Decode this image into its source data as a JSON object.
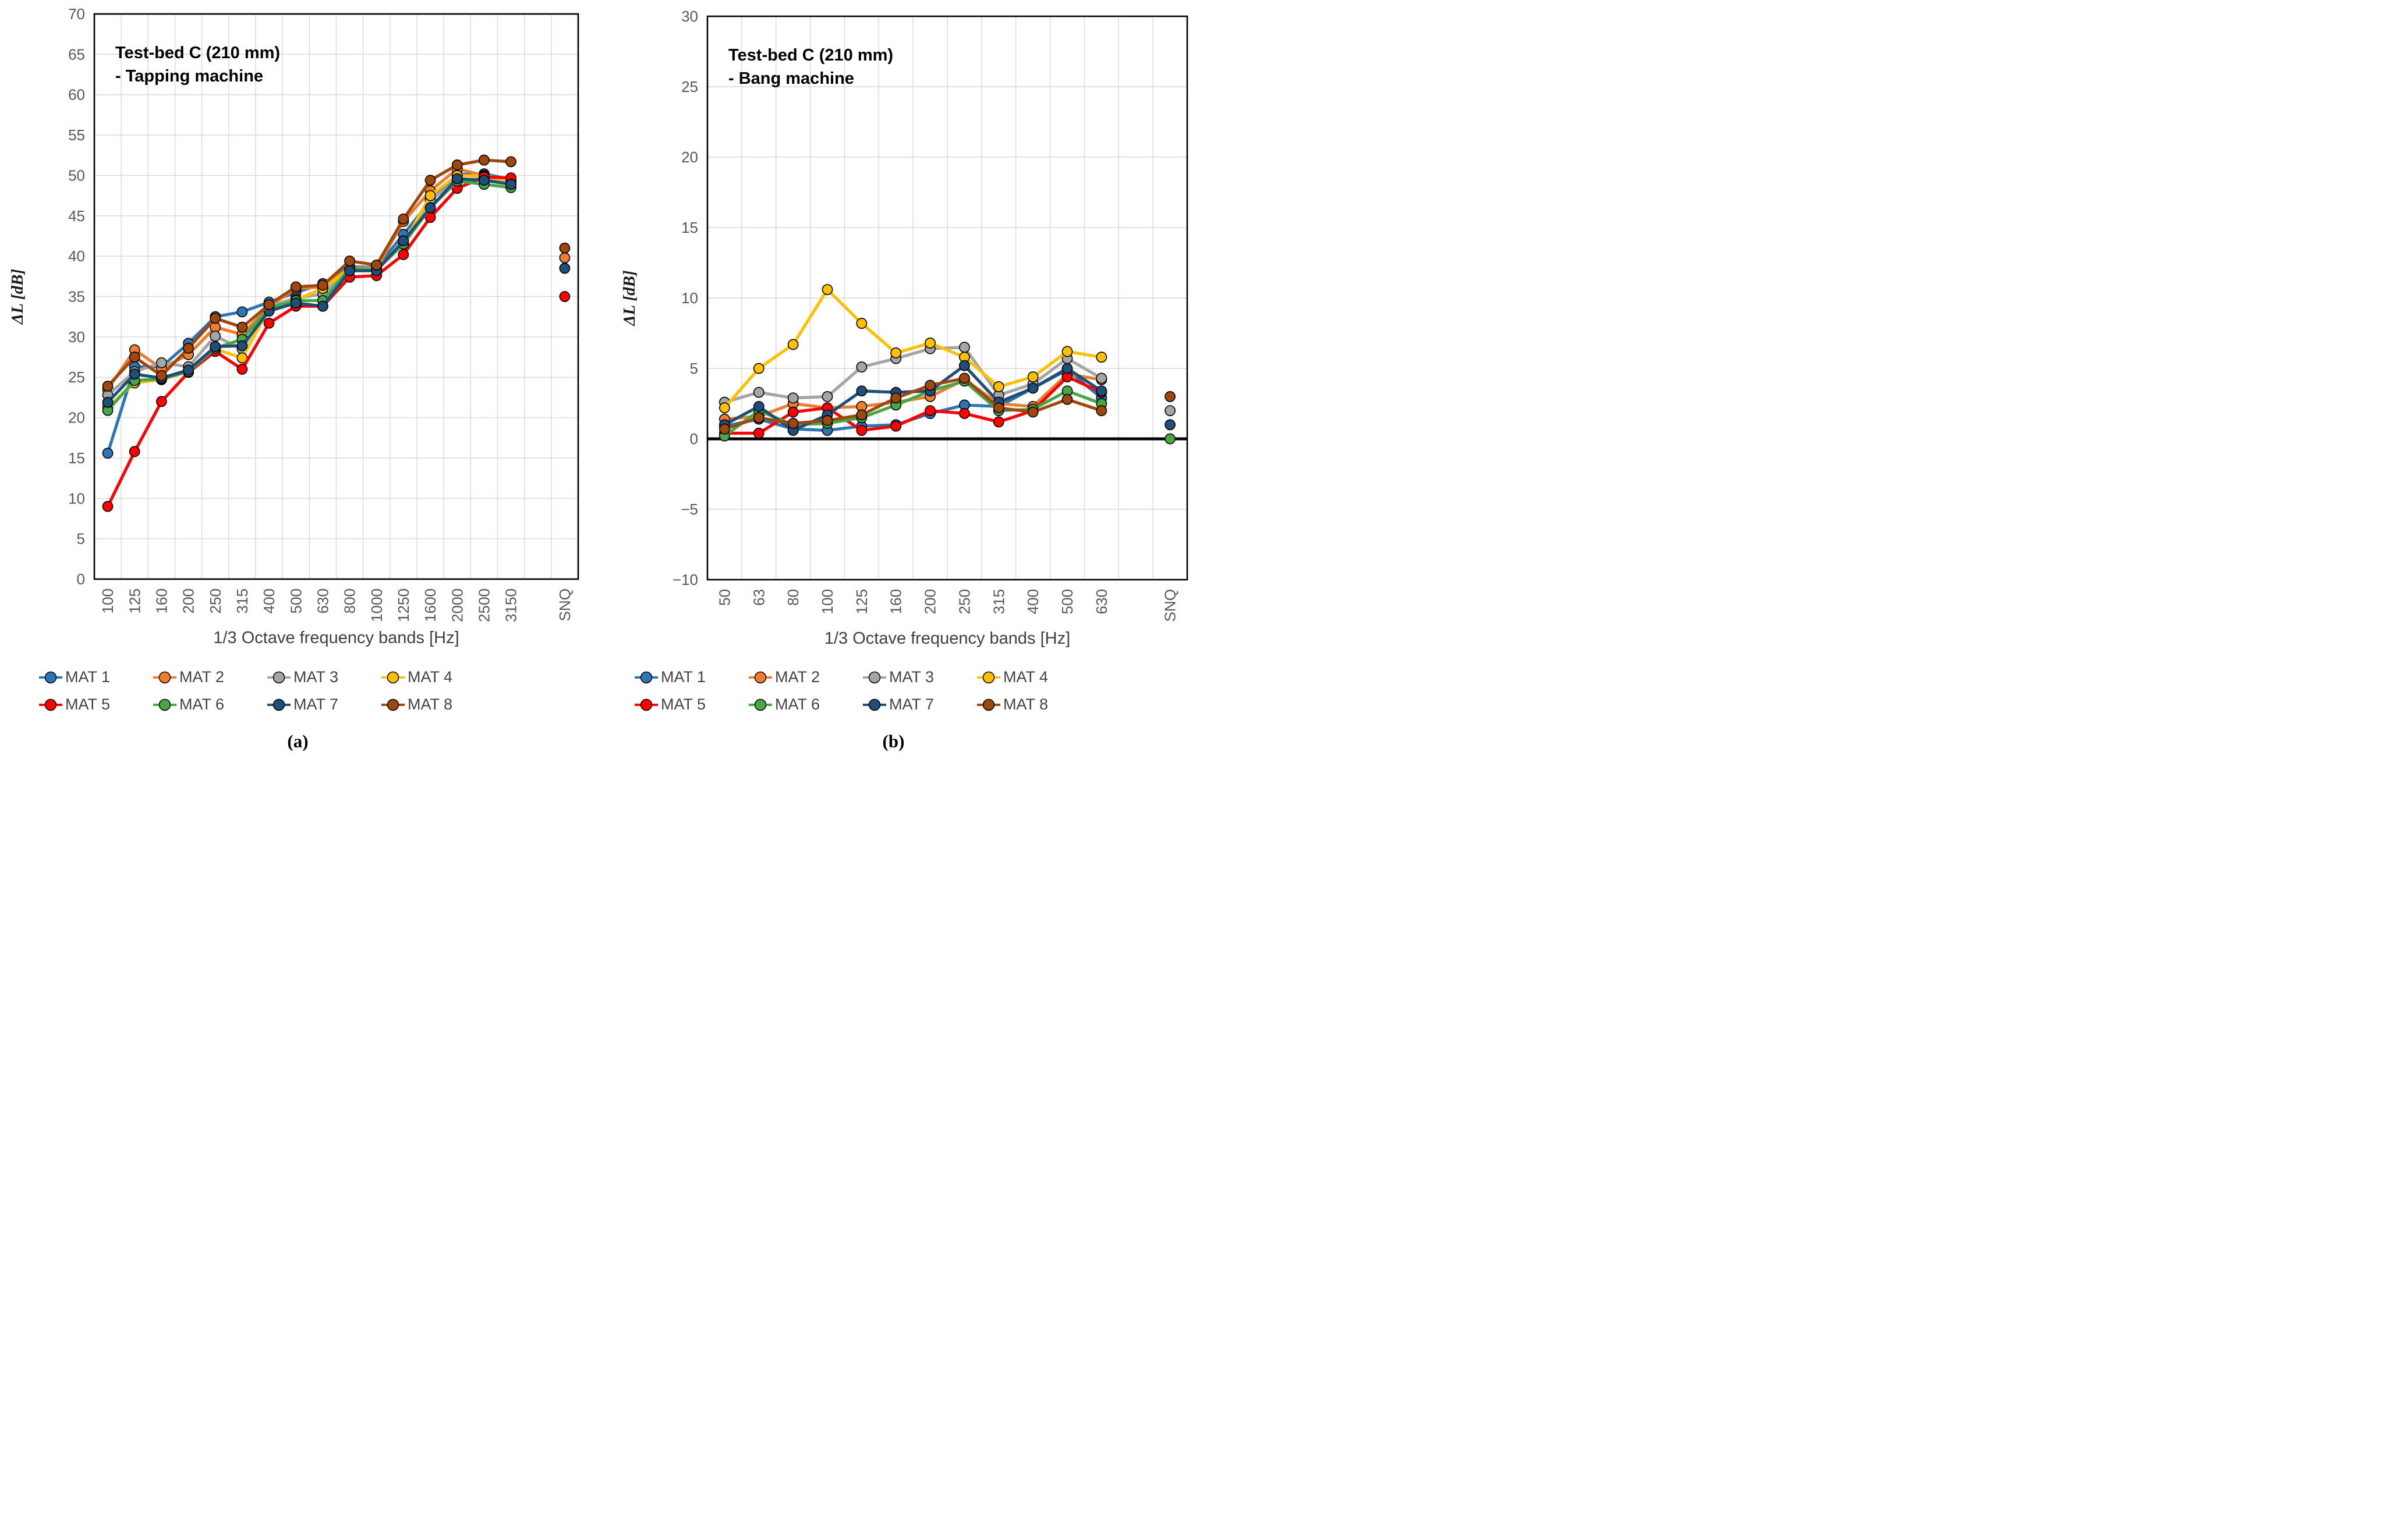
{
  "figure": {
    "caption_a": "(a)",
    "caption_b": "(b)"
  },
  "legend": {
    "items": [
      {
        "label": "MAT 1",
        "color": "#2E75B6"
      },
      {
        "label": "MAT 2",
        "color": "#ED7D31"
      },
      {
        "label": "MAT 3",
        "color": "#A5A5A5"
      },
      {
        "label": "MAT 4",
        "color": "#FFC000"
      },
      {
        "label": "MAT 5",
        "color": "#FF0000"
      },
      {
        "label": "MAT 6",
        "color": "#45A845"
      },
      {
        "label": "MAT 7",
        "color": "#1F4E79"
      },
      {
        "label": "MAT 8",
        "color": "#9E480E"
      }
    ]
  },
  "chart_data": [
    {
      "type": "line",
      "panel": "a",
      "title": "Test-bed C (210 mm)",
      "subtitle": "- Tapping machine",
      "xlabel": "1/3 Octave frequency bands [Hz]",
      "ylabel": "ΔL [dB]",
      "ylim": [
        0,
        70
      ],
      "ytick": 5,
      "ytick_labels": [
        "70",
        "65",
        "60",
        "55",
        "50",
        "45",
        "40",
        "35",
        "30",
        "25",
        "20",
        "15",
        "10",
        "5",
        "0"
      ],
      "grid": true,
      "zero_line": false,
      "legend_position": "bottom",
      "snq_label": "SNQ",
      "categories": [
        "100",
        "125",
        "160",
        "200",
        "250",
        "315",
        "400",
        "500",
        "630",
        "800",
        "1000",
        "1250",
        "1600",
        "2000",
        "2500",
        "3150"
      ],
      "series": [
        {
          "name": "MAT 1",
          "color": "#2E75B6",
          "values": [
            15.6,
            26.3,
            26.3,
            29.2,
            32.5,
            33.1,
            34.3,
            35.5,
            36.6,
            38.7,
            38.6,
            42.7,
            46.8,
            50.1,
            50.2,
            49.5
          ],
          "snq": null
        },
        {
          "name": "MAT 2",
          "color": "#ED7D31",
          "values": [
            23.5,
            28.4,
            26.1,
            27.8,
            31.2,
            30.3,
            33.8,
            36.0,
            36.2,
            38.6,
            38.5,
            44.3,
            48.1,
            50.8,
            50.0,
            49.4
          ],
          "snq": 39.8
        },
        {
          "name": "MAT 3",
          "color": "#A5A5A5",
          "values": [
            22.8,
            25.7,
            26.8,
            26.3,
            30.1,
            28.5,
            33.8,
            34.8,
            35.3,
            38.5,
            38.4,
            41.6,
            47.0,
            49.4,
            49.6,
            49.2
          ],
          "snq": null
        },
        {
          "name": "MAT 4",
          "color": "#FFC000",
          "values": [
            21.3,
            24.3,
            24.7,
            25.7,
            28.5,
            27.4,
            33.5,
            34.6,
            36.0,
            38.4,
            38.3,
            41.5,
            47.5,
            50.0,
            49.9,
            49.3
          ],
          "snq": null
        },
        {
          "name": "MAT 5",
          "color": "#FF0000",
          "values": [
            9.0,
            15.8,
            22.0,
            25.6,
            28.2,
            26.0,
            31.7,
            33.8,
            33.8,
            37.4,
            37.6,
            40.2,
            44.8,
            48.4,
            49.8,
            49.7
          ],
          "snq": 35.0
        },
        {
          "name": "MAT 6",
          "color": "#45A845",
          "values": [
            20.9,
            24.6,
            24.8,
            25.7,
            28.6,
            29.7,
            33.6,
            34.5,
            34.5,
            38.5,
            38.3,
            41.5,
            46.0,
            49.3,
            48.9,
            48.5
          ],
          "snq": null
        },
        {
          "name": "MAT 7",
          "color": "#1F4E79",
          "values": [
            21.9,
            25.4,
            24.9,
            25.9,
            28.8,
            28.9,
            33.2,
            34.2,
            33.8,
            38.2,
            38.2,
            41.9,
            46.0,
            49.6,
            49.4,
            48.9
          ],
          "snq": 38.5
        },
        {
          "name": "MAT 8",
          "color": "#9E480E",
          "values": [
            23.9,
            27.5,
            25.2,
            28.6,
            32.3,
            31.2,
            34.0,
            36.2,
            36.4,
            39.4,
            38.9,
            44.6,
            49.4,
            51.3,
            51.9,
            51.7
          ],
          "snq": 41.0
        }
      ]
    },
    {
      "type": "line",
      "panel": "b",
      "title": "Test-bed C (210 mm)",
      "subtitle": "- Bang machine",
      "xlabel": "1/3 Octave frequency bands [Hz]",
      "ylabel": "ΔL [dB]",
      "ylim": [
        -10,
        30
      ],
      "ytick": 5,
      "ytick_labels": [
        "30",
        "25",
        "20",
        "15",
        "10",
        "5",
        "0",
        "−5",
        "−10"
      ],
      "grid": true,
      "zero_line": true,
      "legend_position": "bottom",
      "snq_label": "SNQ",
      "categories": [
        "50",
        "63",
        "80",
        "100",
        "125",
        "160",
        "200",
        "250",
        "315",
        "400",
        "500",
        "630"
      ],
      "series": [
        {
          "name": "MAT 1",
          "color": "#2E75B6",
          "values": [
            0.9,
            1.4,
            0.7,
            0.6,
            0.9,
            1.0,
            1.8,
            2.4,
            2.3,
            3.6,
            4.9,
            2.9
          ],
          "snq": null
        },
        {
          "name": "MAT 2",
          "color": "#ED7D31",
          "values": [
            1.4,
            1.6,
            2.5,
            2.2,
            2.3,
            2.6,
            3.0,
            4.2,
            2.5,
            2.3,
            4.6,
            4.2
          ],
          "snq": null
        },
        {
          "name": "MAT 3",
          "color": "#A5A5A5",
          "values": [
            2.6,
            3.3,
            2.9,
            3.0,
            5.1,
            5.7,
            6.4,
            6.5,
            3.1,
            3.9,
            5.7,
            4.3
          ],
          "snq": 2.0
        },
        {
          "name": "MAT 4",
          "color": "#FFC000",
          "values": [
            2.2,
            5.0,
            6.7,
            10.6,
            8.2,
            6.1,
            6.8,
            5.8,
            3.7,
            4.4,
            6.2,
            5.8
          ],
          "snq": null
        },
        {
          "name": "MAT 5",
          "color": "#FF0000",
          "values": [
            0.4,
            0.4,
            1.9,
            2.2,
            0.6,
            0.9,
            2.0,
            1.8,
            1.2,
            2.0,
            4.4,
            3.3
          ],
          "snq": null
        },
        {
          "name": "MAT 6",
          "color": "#45A845",
          "values": [
            0.2,
            2.0,
            1.0,
            1.1,
            1.5,
            2.4,
            3.4,
            4.1,
            2.0,
            2.1,
            3.4,
            2.5
          ],
          "snq": 0.0
        },
        {
          "name": "MAT 7",
          "color": "#1F4E79",
          "values": [
            1.0,
            2.3,
            0.6,
            1.7,
            3.4,
            3.3,
            3.4,
            5.2,
            2.6,
            3.6,
            5.0,
            3.4
          ],
          "snq": 1.0
        },
        {
          "name": "MAT 8",
          "color": "#9E480E",
          "values": [
            0.7,
            1.5,
            1.1,
            1.3,
            1.7,
            2.9,
            3.8,
            4.3,
            2.2,
            1.9,
            2.8,
            2.0
          ],
          "snq": 3.0
        }
      ]
    }
  ]
}
